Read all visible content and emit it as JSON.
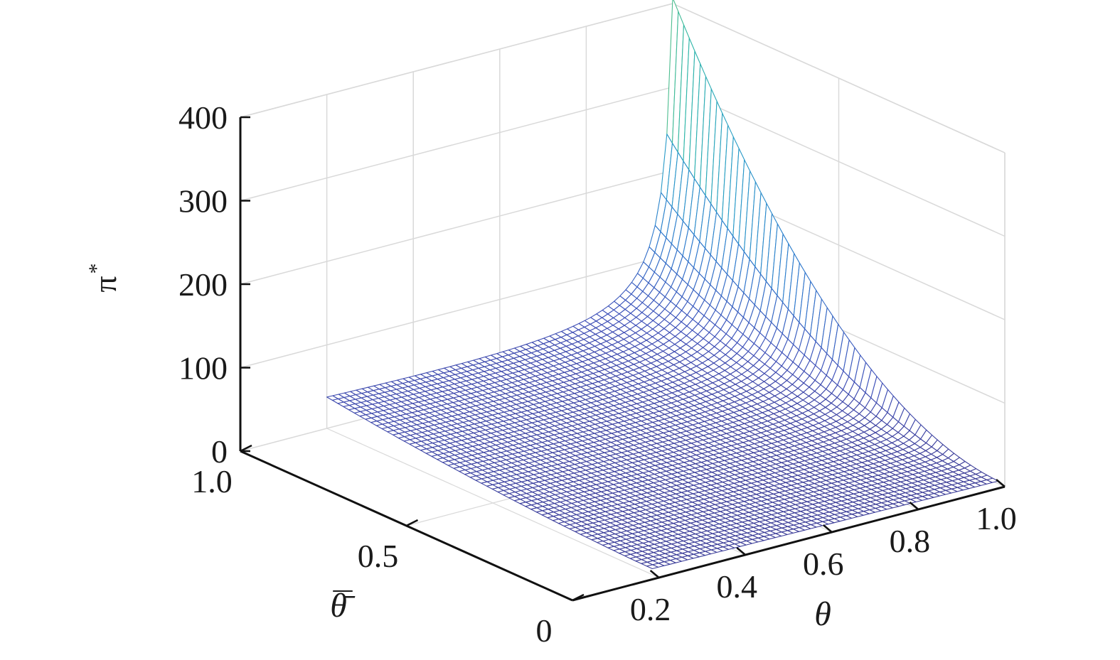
{
  "chart_data": {
    "type": "surface3d",
    "title": "",
    "xlabel": "θ",
    "ylabel": "θ̄",
    "zlabel": "π",
    "zlabel_superscript": "*",
    "x_range": [
      0,
      1
    ],
    "y_range": [
      0,
      1
    ],
    "z_range": [
      0,
      400
    ],
    "x_ticks": [
      0.2,
      0.4,
      0.6,
      0.8,
      1.0
    ],
    "x_tick_labels": [
      "0.2",
      "0.4",
      "0.6",
      "0.8",
      "1.0"
    ],
    "y_ticks": [
      0,
      0.5,
      1.0
    ],
    "y_tick_labels": [
      "0",
      "0.5",
      "1.0"
    ],
    "z_ticks": [
      0,
      100,
      200,
      300,
      400
    ],
    "z_tick_labels": [
      "0",
      "100",
      "200",
      "300",
      "400"
    ],
    "grid": true,
    "colormap": "parula",
    "colors": {
      "low": "#3b3a94",
      "mid": "#2c8fc9",
      "high": "#2fb7a7",
      "top": "#d8d12b"
    },
    "surface": {
      "x_start": 0.2,
      "x_end": 1.0,
      "x_count": 60,
      "y_start": 0.02,
      "y_end": 1.0,
      "y_count": 60,
      "peak_value": 430,
      "peak_at": {
        "x": 1.0,
        "y": 1.0
      },
      "value_at_x0_2_y1": 50,
      "value_at_x1_y0": 5
    }
  }
}
